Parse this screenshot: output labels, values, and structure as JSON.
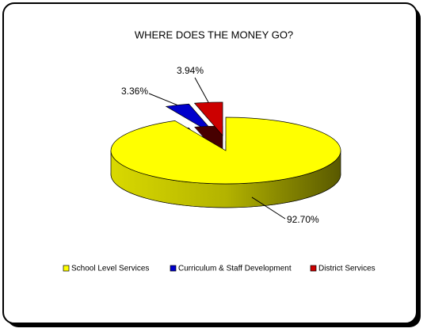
{
  "chart_data": {
    "type": "pie",
    "title": "WHERE DOES THE MONEY GO?",
    "categories": [
      "School Level Services",
      "Curriculum & Staff Development",
      "District Services"
    ],
    "values": [
      92.7,
      3.36,
      3.94
    ],
    "value_labels": [
      "92.70%",
      "3.36%",
      "3.94%"
    ],
    "colors": [
      "#ffff00",
      "#0000cc",
      "#cc0000"
    ],
    "legend": "bottom"
  }
}
